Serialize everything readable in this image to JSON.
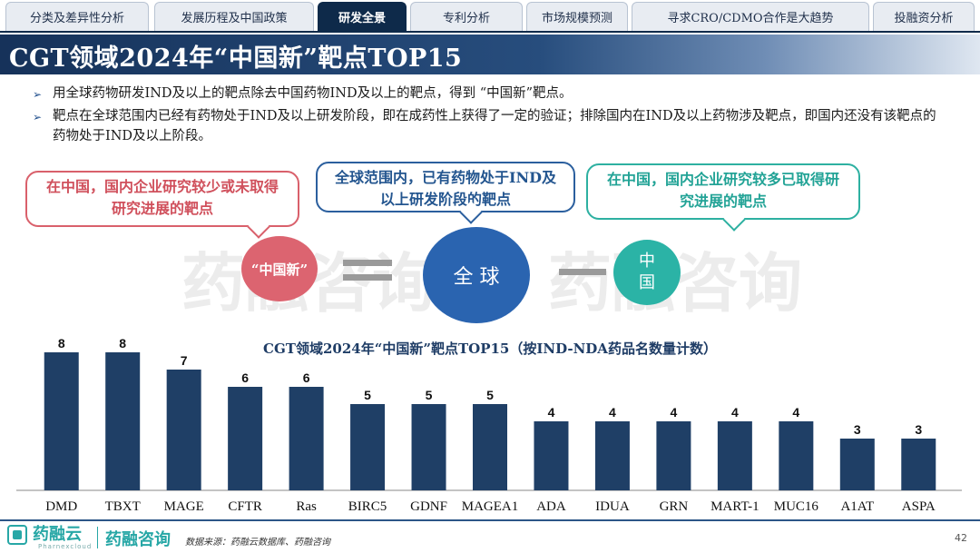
{
  "tabs": [
    {
      "label": "分类及差异性分析",
      "active": false
    },
    {
      "label": "发展历程及中国政策",
      "active": false
    },
    {
      "label": "研发全景",
      "active": true
    },
    {
      "label": "专利分析",
      "active": false
    },
    {
      "label": "市场规模预测",
      "active": false
    },
    {
      "label": "寻求CRO/CDMO合作是大趋势",
      "active": false
    },
    {
      "label": "投融资分析",
      "active": false
    }
  ],
  "page_title": "CGT领域2024年“中国新”靶点TOP15",
  "bullets": [
    "用全球药物研发IND及以上的靶点除去中国药物IND及以上的靶点，得到 “中国新”靶点。",
    "靶点在全球范围内已经有药物处于IND及以上研发阶段，即在成药性上获得了一定的验证；排除国内在IND及以上药物涉及靶点，即国内还没有该靶点的药物处于IND及以上阶段。"
  ],
  "diagram": {
    "callout_left": "在中国，国内企业研究较少或未取得研究进展的靶点",
    "callout_middle": "全球范围内，已有药物处于IND及以上研发阶段的靶点",
    "callout_right": "在中国，国内企业研究较多已取得研究进展的靶点",
    "circle_left": "“中国新”",
    "circle_middle": "全 球",
    "circle_right": "中\n国",
    "colors": {
      "left": "#dc6470",
      "middle": "#2a64b0",
      "right": "#2bb3a6",
      "left_border": "#d9606b",
      "middle_border": "#2b5f9e",
      "right_border": "#2db0a1"
    }
  },
  "watermark": "药融咨询",
  "chart_data": {
    "type": "bar",
    "title": "CGT领域2024年“中国新”靶点TOP15（按IND-NDA药品名数量计数）",
    "categories": [
      "DMD",
      "TBXT",
      "MAGE",
      "CFTR",
      "Ras",
      "BIRC5",
      "GDNF",
      "MAGEA1",
      "ADA",
      "IDUA",
      "GRN",
      "MART-1",
      "MUC16",
      "A1AT",
      "ASPA"
    ],
    "values": [
      8,
      8,
      7,
      6,
      6,
      5,
      5,
      5,
      4,
      4,
      4,
      4,
      4,
      3,
      3
    ],
    "bar_color": "#1f3f66",
    "ylim": [
      0,
      8
    ]
  },
  "footer": {
    "logo1_name": "药融云",
    "logo1_sub": "Pharnexcloud",
    "logo2_name": "药融咨询",
    "source": "数据来源：药融云数据库、药融咨询",
    "page_number": "42"
  }
}
